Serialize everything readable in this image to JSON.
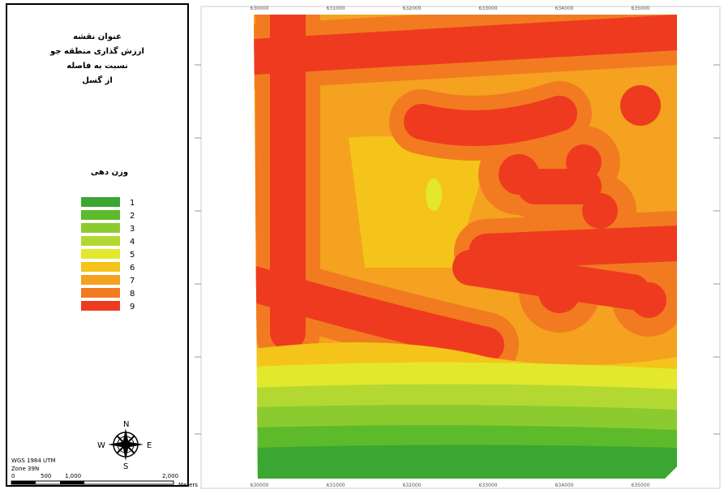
{
  "title": {
    "heading": "عنوان نقشه",
    "lines": [
      "ارزش گذاری منطقه جو",
      "نسبت به فاصله",
      "از گسل"
    ]
  },
  "legend": {
    "title": "وزن دهی",
    "items": [
      {
        "label": "1",
        "color": "#3ba631"
      },
      {
        "label": "2",
        "color": "#5dbb2b"
      },
      {
        "label": "3",
        "color": "#8ccb2f"
      },
      {
        "label": "4",
        "color": "#b4d832"
      },
      {
        "label": "5",
        "color": "#e3e82c"
      },
      {
        "label": "6",
        "color": "#f5c41a"
      },
      {
        "label": "7",
        "color": "#f4a21f"
      },
      {
        "label": "8",
        "color": "#f27b21"
      },
      {
        "label": "9",
        "color": "#ee3b1f"
      }
    ]
  },
  "compass": {
    "n": "N",
    "s": "S",
    "e": "E",
    "w": "W"
  },
  "projection": [
    "WGS 1984 UTM",
    "Zone 39N"
  ],
  "scale_bar": {
    "labels": [
      "0",
      "500",
      "1,000",
      "2,000"
    ],
    "unit": "Meters"
  },
  "map": {
    "x_ticks": [
      "630000",
      "631000",
      "632000",
      "633000",
      "634000",
      "635000"
    ]
  }
}
